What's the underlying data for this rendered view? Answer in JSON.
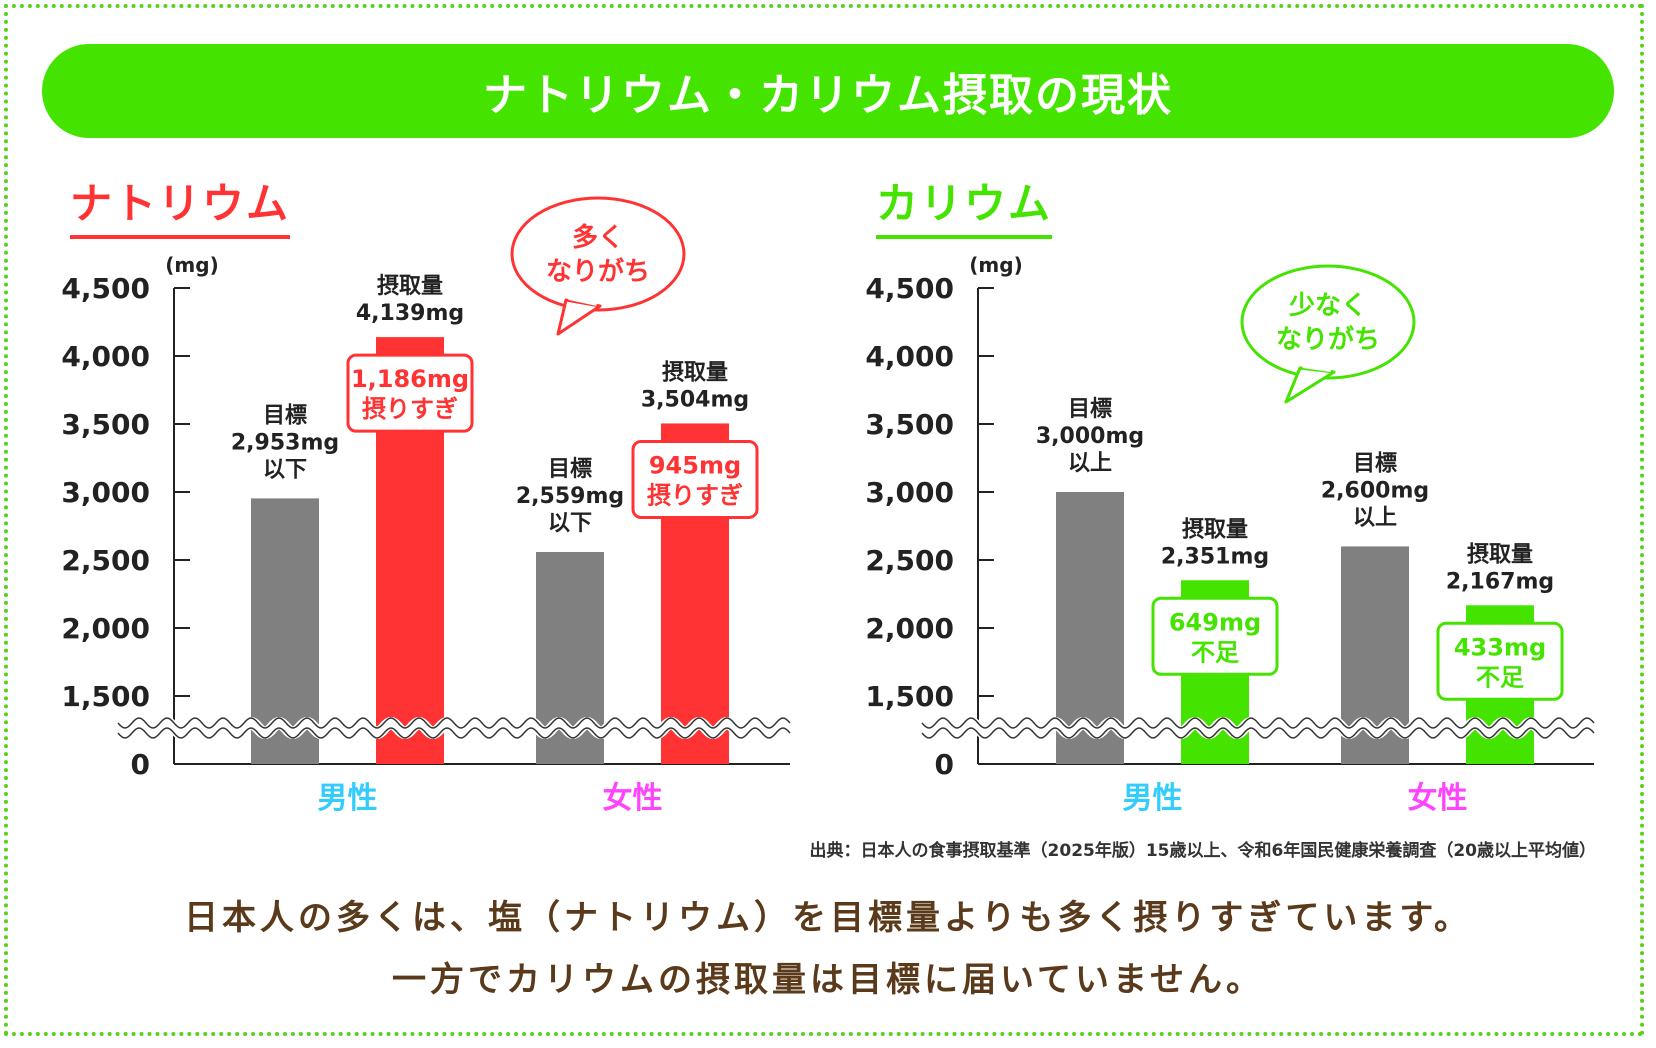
{
  "banner": {
    "title": "ナトリウム・カリウム摂取の現状"
  },
  "colors": {
    "green": "#44e400",
    "red": "#ff3333",
    "gray": "#808080",
    "male": "#33ccff",
    "female": "#ff44ff",
    "brown": "#5a3a1a"
  },
  "chart_data": [
    {
      "type": "bar",
      "title": "ナトリウム",
      "unit": "(mg)",
      "categories": [
        "男性",
        "女性"
      ],
      "series": [
        {
          "name": "目標",
          "values": [
            2953,
            2559
          ]
        },
        {
          "name": "摂取量",
          "values": [
            4139,
            3504
          ]
        }
      ],
      "yticks": [
        "4,500",
        "4,000",
        "3,500",
        "3,000",
        "2,500",
        "2,000",
        "1,500",
        "0"
      ],
      "ylim": [
        1250,
        4500
      ],
      "axis_break": true,
      "target_labels": [
        [
          "目標",
          "2,953mg",
          "以下"
        ],
        [
          "目標",
          "2,559mg",
          "以下"
        ]
      ],
      "intake_labels": [
        [
          "摂取量",
          "4,139mg"
        ],
        [
          "摂取量",
          "3,504mg"
        ]
      ],
      "diff_labels": [
        [
          "1,186mg",
          "摂りすぎ"
        ],
        [
          "945mg",
          "摂りすぎ"
        ]
      ],
      "bubble": [
        "多く",
        "なりがち"
      ]
    },
    {
      "type": "bar",
      "title": "カリウム",
      "unit": "(mg)",
      "categories": [
        "男性",
        "女性"
      ],
      "series": [
        {
          "name": "目標",
          "values": [
            3000,
            2600
          ]
        },
        {
          "name": "摂取量",
          "values": [
            2351,
            2167
          ]
        }
      ],
      "yticks": [
        "4,500",
        "4,000",
        "3,500",
        "3,000",
        "2,500",
        "2,000",
        "1,500",
        "0"
      ],
      "ylim": [
        1250,
        4500
      ],
      "axis_break": true,
      "target_labels": [
        [
          "目標",
          "3,000mg",
          "以上"
        ],
        [
          "目標",
          "2,600mg",
          "以上"
        ]
      ],
      "intake_labels": [
        [
          "摂取量",
          "2,351mg"
        ],
        [
          "摂取量",
          "2,167mg"
        ]
      ],
      "diff_labels": [
        [
          "649mg",
          "不足"
        ],
        [
          "433mg",
          "不足"
        ]
      ],
      "bubble": [
        "少なく",
        "なりがち"
      ]
    }
  ],
  "source": "出典：日本人の食事摂取基準（2025年版）15歳以上、令和6年国民健康栄養調査（20歳以上平均値）",
  "summary": [
    "日本人の多くは、塩（ナトリウム）を目標量よりも多く摂りすぎています。",
    "一方でカリウムの摂取量は目標に届いていません。"
  ]
}
